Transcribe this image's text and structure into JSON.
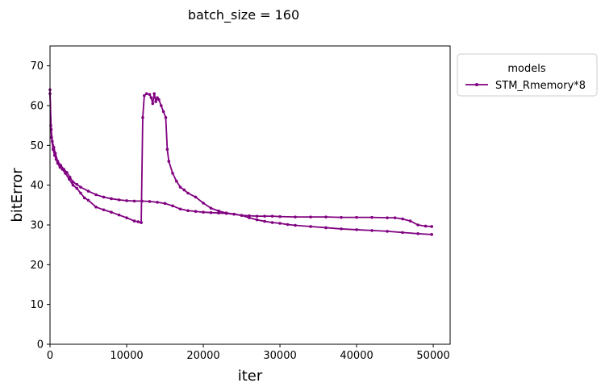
{
  "chart_data": {
    "type": "line",
    "title": "batch_size = 160",
    "xlabel": "iter",
    "ylabel": "bitError",
    "xlim": [
      0,
      52200
    ],
    "ylim": [
      0,
      75
    ],
    "xticks": [
      0,
      10000,
      20000,
      30000,
      40000,
      50000
    ],
    "yticks": [
      0,
      10,
      20,
      30,
      40,
      50,
      60,
      70
    ],
    "grid": false,
    "legend": {
      "title": "models",
      "placement": "outside-top-right"
    },
    "series": [
      {
        "name": "STM_Rmemory*8",
        "color": "#800080",
        "marker": "circle",
        "segments": [
          {
            "x": [
              0,
              100,
              200,
              400,
              600,
              800,
              1000,
              1300,
              1600,
              2000,
              2500,
              3000,
              3500,
              4000,
              4500,
              5000,
              6000,
              7000,
              8000,
              9000,
              10000,
              11000,
              11500,
              11900
            ],
            "y": [
              64,
              55,
              52,
              49,
              47.5,
              46.5,
              45.5,
              44.5,
              44,
              43,
              41.5,
              40,
              39.2,
              38,
              36.8,
              36.2,
              34.5,
              33.8,
              33.2,
              32.5,
              31.8,
              31,
              30.8,
              30.6
            ]
          },
          {
            "x": [
              11900,
              12100,
              12300,
              12600,
              13000,
              13200,
              13400,
              13600,
              13800,
              14000,
              14200,
              14500,
              14800,
              15100,
              15300,
              15500,
              16000,
              16500,
              17000,
              17500,
              18000,
              19000,
              20000,
              21000,
              22000,
              23000,
              24000,
              25000,
              26000,
              27000,
              28000,
              29000,
              30000,
              32000,
              34000,
              36000,
              38000,
              40000,
              42000,
              44000,
              45000,
              46000,
              47000,
              48000,
              49000,
              49800
            ],
            "y": [
              30.6,
              57,
              62.5,
              63,
              62.8,
              62,
              60.5,
              63,
              61,
              62,
              61.5,
              60,
              58.5,
              57,
              49,
              46,
              43,
              41,
              39.5,
              38.8,
              38,
              37,
              35.5,
              34.2,
              33.5,
              33,
              32.7,
              32.4,
              32.3,
              32.2,
              32.2,
              32.2,
              32.1,
              32,
              32,
              32,
              31.9,
              31.9,
              31.9,
              31.8,
              31.8,
              31.5,
              31,
              30,
              29.7,
              29.6
            ]
          },
          {
            "x": [
              0,
              150,
              300,
              500,
              700,
              1000,
              1400,
              1800,
              2200,
              2600,
              3000,
              3500,
              4000,
              5000,
              6000,
              7000,
              8000,
              9000,
              10000,
              11000,
              12000,
              13000,
              14000,
              15000,
              16000,
              17000,
              18000,
              19000,
              20000,
              21000,
              22000,
              23000,
              24000,
              25000,
              26000,
              27000,
              28000,
              29000,
              30000,
              31000,
              32000,
              34000,
              36000,
              38000,
              40000,
              42000,
              44000,
              46000,
              48000,
              49800
            ],
            "y": [
              63,
              54,
              51,
              49.5,
              48,
              46,
              45,
              44,
              43.2,
              42,
              40.8,
              40.2,
              39.5,
              38.5,
              37.6,
              37,
              36.6,
              36.3,
              36.1,
              36,
              36,
              35.9,
              35.7,
              35.4,
              34.8,
              34,
              33.6,
              33.4,
              33.2,
              33.1,
              33,
              32.9,
              32.7,
              32.4,
              31.8,
              31.3,
              30.9,
              30.6,
              30.4,
              30.1,
              29.9,
              29.6,
              29.3,
              29,
              28.8,
              28.6,
              28.4,
              28.1,
              27.8,
              27.6
            ]
          }
        ]
      }
    ]
  }
}
